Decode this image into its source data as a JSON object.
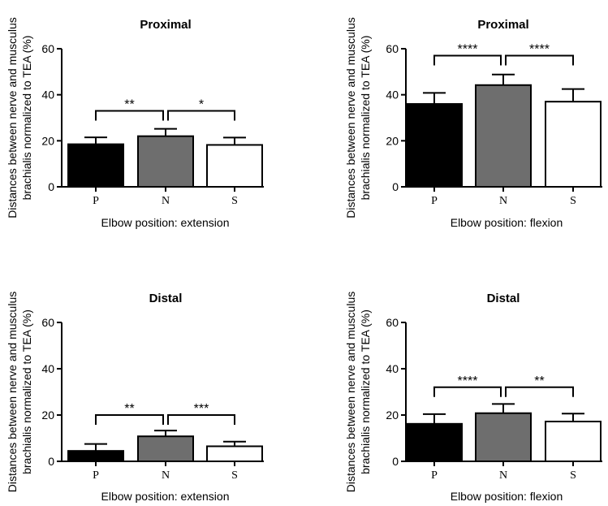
{
  "figure": {
    "ylabel_line1": "Distances between nerve and musculus",
    "ylabel_line2": "brachialis normalized to TEA (%)"
  },
  "colors": {
    "P": "#000000",
    "N": "#6e6e6e",
    "S": "#ffffff",
    "edge": "#000000"
  },
  "chart_data": [
    {
      "type": "bar",
      "title": "Proximal",
      "xlabel": "Elbow position: extension",
      "categories": [
        "P",
        "N",
        "S"
      ],
      "values": [
        18.5,
        22.0,
        18.2
      ],
      "errors": [
        3.0,
        3.2,
        3.2
      ],
      "ylim": [
        0,
        60
      ],
      "yticks": [
        0,
        20,
        40,
        60
      ],
      "grid": false,
      "significance": [
        {
          "from": 0,
          "to": 1,
          "label": "**",
          "y": 33
        },
        {
          "from": 1,
          "to": 2,
          "label": "*",
          "y": 33
        }
      ]
    },
    {
      "type": "bar",
      "title": "Proximal",
      "xlabel": "Elbow position: flexion",
      "categories": [
        "P",
        "N",
        "S"
      ],
      "values": [
        36.0,
        44.2,
        37.0
      ],
      "errors": [
        4.8,
        4.6,
        5.5
      ],
      "ylim": [
        0,
        60
      ],
      "yticks": [
        0,
        20,
        40,
        60
      ],
      "grid": false,
      "significance": [
        {
          "from": 0,
          "to": 1,
          "label": "****",
          "y": 57
        },
        {
          "from": 1,
          "to": 2,
          "label": "****",
          "y": 57
        }
      ]
    },
    {
      "type": "bar",
      "title": "Distal",
      "xlabel": "Elbow position: extension",
      "categories": [
        "P",
        "N",
        "S"
      ],
      "values": [
        4.5,
        10.8,
        6.5
      ],
      "errors": [
        3.0,
        2.5,
        2.0
      ],
      "ylim": [
        0,
        60
      ],
      "yticks": [
        0,
        20,
        40,
        60
      ],
      "grid": false,
      "significance": [
        {
          "from": 0,
          "to": 1,
          "label": "**",
          "y": 20
        },
        {
          "from": 1,
          "to": 2,
          "label": "***",
          "y": 20
        }
      ]
    },
    {
      "type": "bar",
      "title": "Distal",
      "xlabel": "Elbow position: flexion",
      "categories": [
        "P",
        "N",
        "S"
      ],
      "values": [
        16.2,
        20.8,
        17.2
      ],
      "errors": [
        4.2,
        4.0,
        3.4
      ],
      "ylim": [
        0,
        60
      ],
      "yticks": [
        0,
        20,
        40,
        60
      ],
      "grid": false,
      "significance": [
        {
          "from": 0,
          "to": 1,
          "label": "****",
          "y": 32
        },
        {
          "from": 1,
          "to": 2,
          "label": "**",
          "y": 32
        }
      ]
    }
  ]
}
